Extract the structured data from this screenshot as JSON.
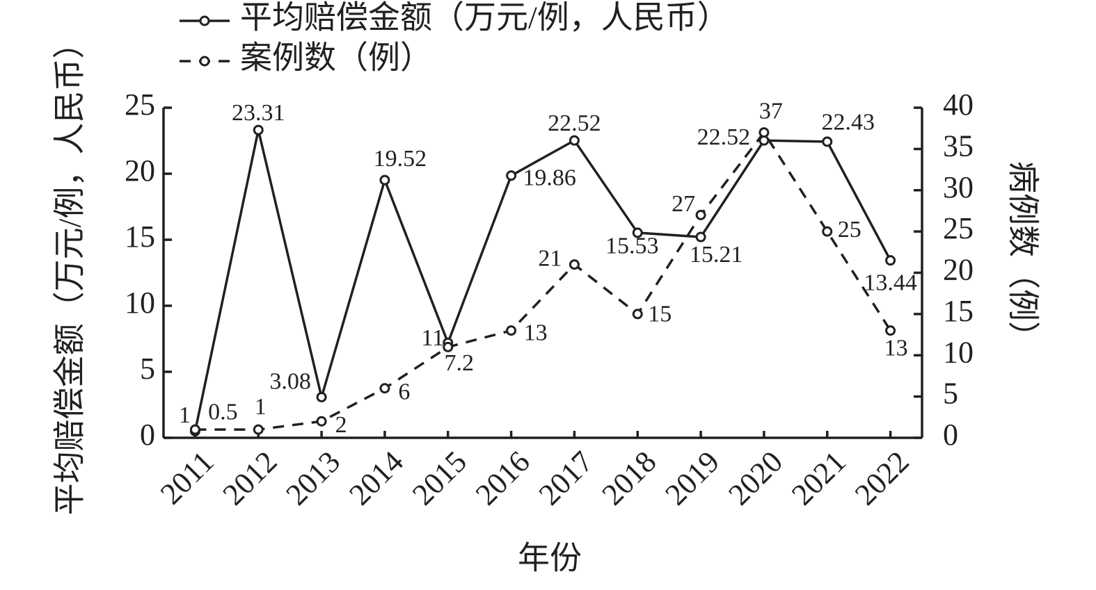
{
  "chart_data": {
    "type": "line",
    "categories": [
      "2011",
      "2012",
      "2013",
      "2014",
      "2015",
      "2016",
      "2017",
      "2018",
      "2019",
      "2020",
      "2021",
      "2022"
    ],
    "x_label": "年份",
    "y_label": "平均赔偿金额（万元/例，人民币）",
    "y2_label": "病例数（例）",
    "ylim": [
      0,
      25
    ],
    "yticks": [
      0,
      5,
      10,
      15,
      20,
      25
    ],
    "y2lim": [
      0,
      40
    ],
    "y2ticks": [
      0,
      5,
      10,
      15,
      20,
      25,
      30,
      35,
      40
    ],
    "series": [
      {
        "name": "平均赔偿金额（万元/例，人民币）",
        "color": "#231f20",
        "dash": "solid",
        "values": [
          0.5,
          23.31,
          3.08,
          19.52,
          7.2,
          19.86,
          22.52,
          15.53,
          15.21,
          22.52,
          22.43,
          13.44
        ]
      },
      {
        "name": "案例数（例）",
        "color": "#231f20",
        "dash": "dashed",
        "axis": "y2",
        "values": [
          1,
          1,
          2,
          6,
          11,
          13,
          21,
          15,
          27,
          37,
          25,
          13
        ]
      }
    ]
  }
}
